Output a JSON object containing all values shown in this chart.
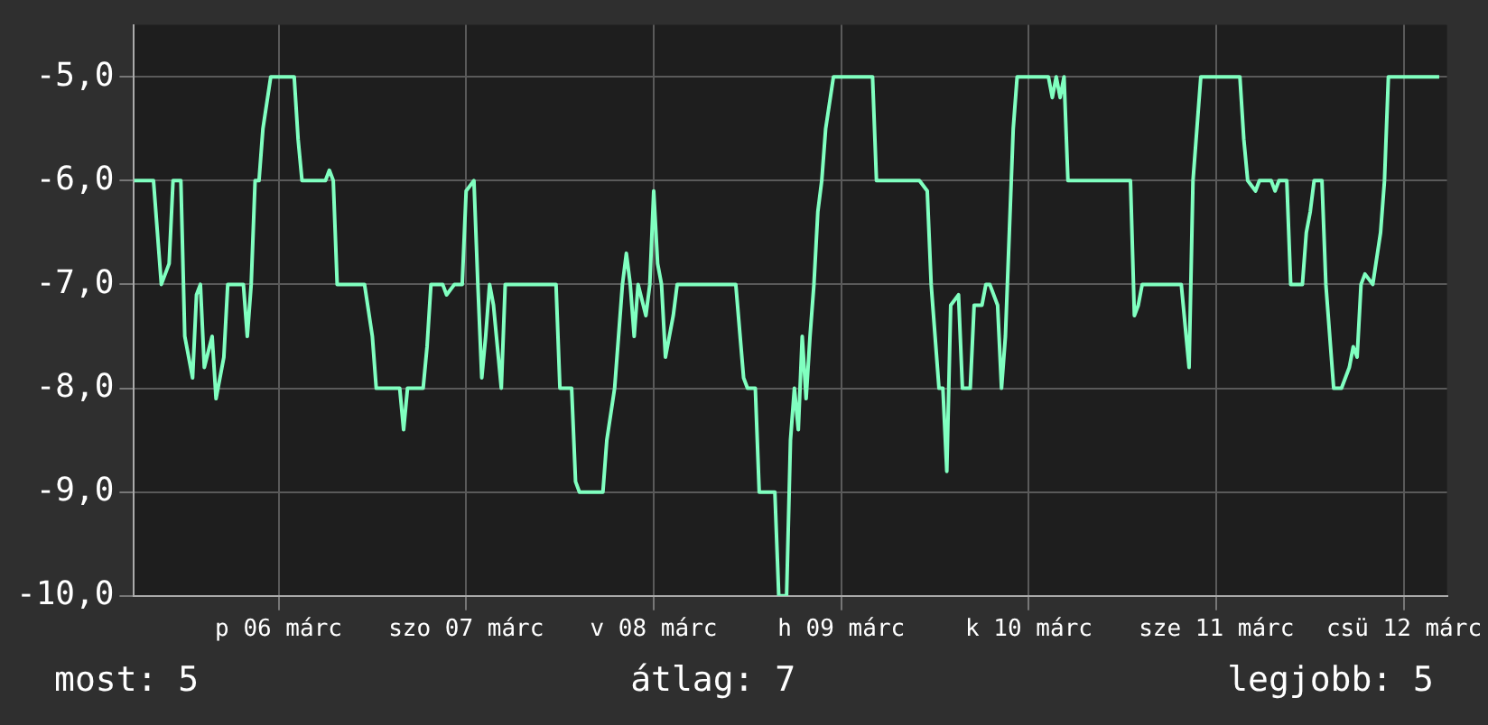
{
  "chart_data": {
    "type": "line",
    "x": [
      "--03-05T17:30",
      "--03-05T20:00",
      "--03-05T20:30",
      "--03-05T21:00",
      "--03-05T22:00",
      "--03-05T22:30",
      "--03-05T23:30",
      "--03-06T00:00",
      "--03-06T01:00",
      "--03-06T01:30",
      "--03-06T02:00",
      "--03-06T02:30",
      "--03-06T03:30",
      "--03-06T04:00",
      "--03-06T05:00",
      "--03-06T05:30",
      "--03-06T07:30",
      "--03-06T08:00",
      "--03-06T08:30",
      "--03-06T09:00",
      "--03-06T09:30",
      "--03-06T10:00",
      "--03-06T11:00",
      "--03-06T14:00",
      "--03-06T14:30",
      "--03-06T15:00",
      "--03-06T18:00",
      "--03-06T18:30",
      "--03-06T19:00",
      "--03-06T19:30",
      "--03-06T23:00",
      "--03-07T00:00",
      "--03-07T00:30",
      "--03-07T03:30",
      "--03-07T04:00",
      "--03-07T04:30",
      "--03-07T06:30",
      "--03-07T07:00",
      "--03-07T07:30",
      "--03-07T09:00",
      "--03-07T09:30",
      "--03-07T10:30",
      "--03-07T11:30",
      "--03-07T12:00",
      "--03-07T13:00",
      "--03-07T13:30",
      "--03-07T14:00",
      "--03-07T14:30",
      "--03-07T15:00",
      "--03-07T15:30",
      "--03-07T16:30",
      "--03-07T17:00",
      "--03-07T23:30",
      "--03-08T00:00",
      "--03-08T01:30",
      "--03-08T02:00",
      "--03-08T02:30",
      "--03-08T05:30",
      "--03-08T06:00",
      "--03-08T07:00",
      "--03-08T07:30",
      "--03-08T08:00",
      "--03-08T08:30",
      "--03-08T09:00",
      "--03-08T09:30",
      "--03-08T10:00",
      "--03-08T11:00",
      "--03-08T11:30",
      "--03-08T12:00",
      "--03-08T12:30",
      "--03-08T13:00",
      "--03-08T13:30",
      "--03-08T14:30",
      "--03-08T15:00",
      "--03-08T22:30",
      "--03-08T23:30",
      "--03-09T00:00",
      "--03-09T01:00",
      "--03-09T01:30",
      "--03-09T03:30",
      "--03-09T04:00",
      "--03-09T05:00",
      "--03-09T05:30",
      "--03-09T06:00",
      "--03-09T06:30",
      "--03-09T07:00",
      "--03-09T07:30",
      "--03-09T08:00",
      "--03-09T08:30",
      "--03-09T09:00",
      "--03-09T09:30",
      "--03-09T10:00",
      "--03-09T11:00",
      "--03-09T16:00",
      "--03-09T16:30",
      "--03-09T22:00",
      "--03-09T23:00",
      "--03-09T23:30",
      "--03-10T00:00",
      "--03-10T00:30",
      "--03-10T01:00",
      "--03-10T01:30",
      "--03-10T02:00",
      "--03-10T03:00",
      "--03-10T03:30",
      "--03-10T04:30",
      "--03-10T05:00",
      "--03-10T06:00",
      "--03-10T06:30",
      "--03-10T07:00",
      "--03-10T08:00",
      "--03-10T08:30",
      "--03-10T09:00",
      "--03-10T09:30",
      "--03-10T10:00",
      "--03-10T10:30",
      "--03-10T14:30",
      "--03-10T15:00",
      "--03-10T15:30",
      "--03-10T16:00",
      "--03-10T16:30",
      "--03-10T17:00",
      "--03-11T01:00",
      "--03-11T01:30",
      "--03-11T02:00",
      "--03-11T02:30",
      "--03-11T07:30",
      "--03-11T08:30",
      "--03-11T09:00",
      "--03-11T09:30",
      "--03-11T10:00",
      "--03-11T15:00",
      "--03-11T15:30",
      "--03-11T16:00",
      "--03-11T17:00",
      "--03-11T17:30",
      "--03-11T19:00",
      "--03-11T19:30",
      "--03-11T20:00",
      "--03-11T21:00",
      "--03-11T21:30",
      "--03-11T23:00",
      "--03-11T23:30",
      "--03-12T00:00",
      "--03-12T00:30",
      "--03-12T01:30",
      "--03-12T02:00",
      "--03-12T03:00",
      "--03-12T04:00",
      "--03-12T05:00",
      "--03-12T05:30",
      "--03-12T06:00",
      "--03-12T06:30",
      "--03-12T07:00",
      "--03-12T08:00",
      "--03-12T09:00",
      "--03-12T09:30",
      "--03-12T10:00",
      "--03-12T16:30"
    ],
    "series": [
      {
        "color": "#80ffc0",
        "values": [
          -6,
          -6,
          -6.5,
          -7,
          -6.8,
          -6,
          -6,
          -7.5,
          -7.9,
          -7.1,
          -7,
          -7.8,
          -7.5,
          -8.1,
          -7.7,
          -7,
          -7,
          -7.5,
          -7,
          -6,
          -6,
          -5.5,
          -5,
          -5,
          -5.6,
          -6,
          -6,
          -5.9,
          -6,
          -7,
          -7,
          -7.5,
          -8,
          -8,
          -8.4,
          -8,
          -8,
          -7.6,
          -7,
          -7,
          -7.1,
          -7,
          -7,
          -6.1,
          -6,
          -7,
          -7.9,
          -7.5,
          -7,
          -7.2,
          -8,
          -7,
          -7,
          -8,
          -8,
          -8.9,
          -9,
          -9,
          -8.5,
          -8,
          -7.5,
          -7,
          -6.7,
          -7,
          -7.5,
          -7,
          -7.3,
          -7,
          -6.1,
          -6.8,
          -7,
          -7.7,
          -7.3,
          -7,
          -7,
          -7.9,
          -8,
          -8,
          -9,
          -9,
          -10,
          -10,
          -8.5,
          -8,
          -8.4,
          -7.5,
          -8.1,
          -7.5,
          -7,
          -6.3,
          -6,
          -5.5,
          -5,
          -5,
          -6,
          -6,
          -6.1,
          -7,
          -7.5,
          -8,
          -8,
          -8.8,
          -7.2,
          -7.1,
          -8,
          -8,
          -7.2,
          -7.2,
          -7,
          -7,
          -7.2,
          -8,
          -7.5,
          -6.5,
          -5.5,
          -5,
          -5,
          -5.2,
          -5,
          -5.2,
          -5,
          -6,
          -6,
          -7.3,
          -7.2,
          -7,
          -7,
          -7.8,
          -6,
          -5.5,
          -5,
          -5,
          -5.6,
          -6,
          -6.1,
          -6,
          -6,
          -6.1,
          -6,
          -6,
          -7,
          -7,
          -6.5,
          -6.3,
          -6,
          -6,
          -7,
          -8,
          -8,
          -7.8,
          -7.6,
          -7.7,
          -7,
          -6.9,
          -7,
          -6.5,
          -6,
          -5,
          -5
        ]
      }
    ],
    "xlim": [
      "--03-05T17:30",
      "--03-12T17:30"
    ],
    "xticks": [
      {
        "value": "--03-06T12:00",
        "label": "p 06 márc"
      },
      {
        "value": "--03-07T12:00",
        "label": "szo 07 márc"
      },
      {
        "value": "--03-08T12:00",
        "label": "v 08 márc"
      },
      {
        "value": "--03-09T12:00",
        "label": "h 09 márc"
      },
      {
        "value": "--03-10T12:00",
        "label": "k 10 márc"
      },
      {
        "value": "--03-11T12:00",
        "label": "sze 11 márc"
      },
      {
        "value": "--03-12T12:00",
        "label": "csü 12 márc"
      }
    ],
    "ylim": [
      -10,
      -4.5
    ],
    "yticks": [
      {
        "value": -10,
        "label": "-10,0"
      },
      {
        "value": -9,
        "label": "-9,0"
      },
      {
        "value": -8,
        "label": "-8,0"
      },
      {
        "value": -7,
        "label": "-7,0"
      },
      {
        "value": -6,
        "label": "-6,0"
      },
      {
        "value": -5,
        "label": "-5,0"
      }
    ],
    "grid": true,
    "legend": false,
    "annotations": [
      "most: 5",
      "átlag: 7",
      "legjobb: 5"
    ]
  }
}
